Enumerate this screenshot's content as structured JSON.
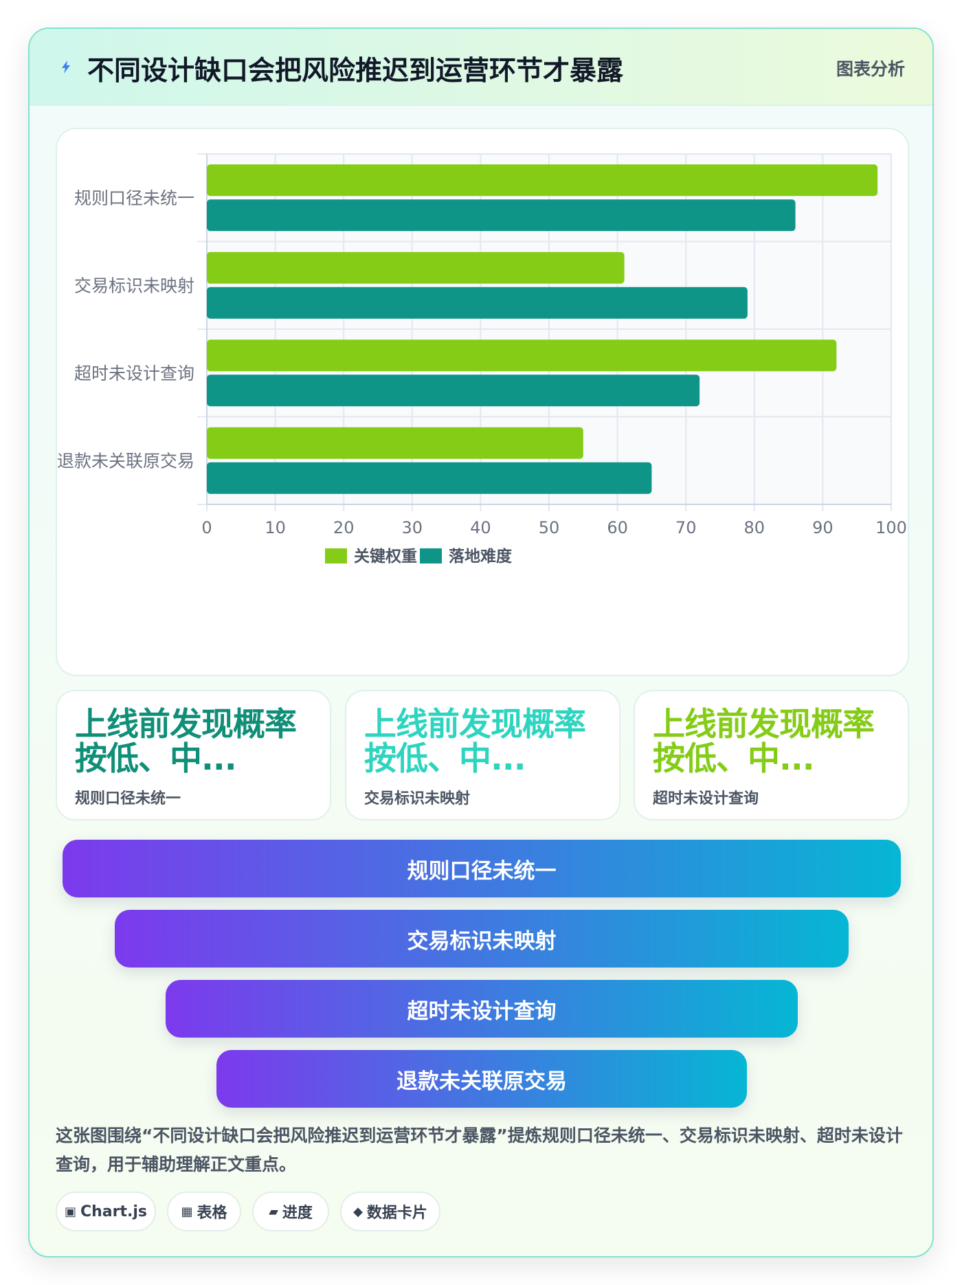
{
  "header": {
    "title": "不同设计缺口会把风险推迟到运营环节才暴露",
    "tag": "图表分析",
    "icon": "lightning-icon"
  },
  "chart_data": {
    "type": "bar",
    "orientation": "horizontal",
    "categories": [
      "规则口径未统一",
      "交易标识未映射",
      "超时未设计查询",
      "退款未关联原交易"
    ],
    "series": [
      {
        "name": "关键权重",
        "color": "#84cc16",
        "values": [
          98,
          61,
          92,
          55
        ]
      },
      {
        "name": "落地难度",
        "color": "#0f9488",
        "values": [
          86,
          79,
          72,
          65
        ]
      }
    ],
    "xlim": [
      0,
      100
    ],
    "xticks": [
      0,
      10,
      20,
      30,
      40,
      50,
      60,
      70,
      80,
      90,
      100
    ],
    "grid": true,
    "legend": "bottom"
  },
  "stats": [
    {
      "value": "上线前发现概率按低、中...",
      "label": "规则口径未统一",
      "color": "#0f8f78"
    },
    {
      "value": "上线前发现概率按低、中...",
      "label": "交易标识未映射",
      "color": "#2dd4bf"
    },
    {
      "value": "上线前发现概率按低、中...",
      "label": "超时未设计查询",
      "color": "#84cc16"
    }
  ],
  "funnel": [
    "规则口径未统一",
    "交易标识未映射",
    "超时未设计查询",
    "退款未关联原交易"
  ],
  "summary": "这张图围绕“不同设计缺口会把风险推迟到运营环节才暴露”提炼规则口径未统一、交易标识未映射、超时未设计查询，用于辅助理解正文重点。",
  "chips": [
    {
      "icon": "▣",
      "label": "Chart.js"
    },
    {
      "icon": "▦",
      "label": "表格"
    },
    {
      "icon": "▰",
      "label": "进度"
    },
    {
      "icon": "◆",
      "label": "数据卡片"
    }
  ]
}
